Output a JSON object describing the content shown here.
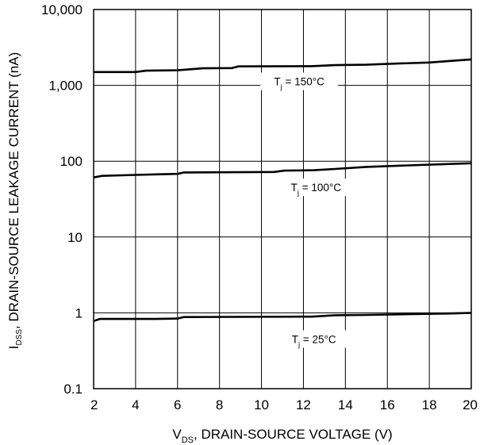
{
  "chart_data": {
    "type": "line",
    "x_axis": {
      "label_main": "V",
      "label_sub": "DS",
      "label_rest": ", DRAIN-SOURCE VOLTAGE (V)",
      "ticks": [
        2,
        4,
        6,
        8,
        10,
        12,
        14,
        16,
        18,
        20
      ],
      "range": [
        2,
        20
      ]
    },
    "y_axis": {
      "label_main": "I",
      "label_sub": "DSS",
      "label_rest": ", DRAIN-SOURCE LEAKAGE CURRENT (nA)",
      "scale": "log",
      "range": [
        0.1,
        10000
      ],
      "ticks": [
        0.1,
        1,
        10,
        100,
        1000,
        10000
      ],
      "tick_labels": [
        "0.1",
        "1",
        "10",
        "100",
        "1,000",
        "10,000"
      ]
    },
    "grid": true,
    "series": [
      {
        "name": "Tj = 150°C",
        "label_main": "T",
        "label_sub": "j",
        "label_rest": " = 150°C",
        "points": [
          [
            2,
            1500
          ],
          [
            4,
            1500
          ],
          [
            4.5,
            1560
          ],
          [
            6,
            1580
          ],
          [
            7.2,
            1680
          ],
          [
            8.6,
            1690
          ],
          [
            8.9,
            1780
          ],
          [
            12.4,
            1790
          ],
          [
            13.5,
            1850
          ],
          [
            15,
            1870
          ],
          [
            16.5,
            1940
          ],
          [
            18,
            2000
          ],
          [
            19,
            2100
          ],
          [
            20,
            2200
          ]
        ]
      },
      {
        "name": "Tj = 100°C",
        "label_main": "T",
        "label_sub": "j",
        "label_rest": " = 100°C",
        "points": [
          [
            2,
            61
          ],
          [
            2.4,
            64
          ],
          [
            4,
            66
          ],
          [
            5,
            67
          ],
          [
            6,
            68
          ],
          [
            6.3,
            71
          ],
          [
            10.6,
            72
          ],
          [
            11.1,
            75
          ],
          [
            12.5,
            76
          ],
          [
            13.5,
            79
          ],
          [
            15,
            84
          ],
          [
            17,
            88
          ],
          [
            19,
            92
          ],
          [
            20,
            94
          ]
        ]
      },
      {
        "name": "Tj = 25°C",
        "label_main": "T",
        "label_sub": "j",
        "label_rest": " = 25°C",
        "points": [
          [
            2,
            0.78
          ],
          [
            2.3,
            0.83
          ],
          [
            5,
            0.83
          ],
          [
            6,
            0.84
          ],
          [
            6.3,
            0.88
          ],
          [
            12.4,
            0.89
          ],
          [
            13.5,
            0.93
          ],
          [
            15,
            0.94
          ],
          [
            17,
            0.96
          ],
          [
            19,
            0.98
          ],
          [
            20,
            1.0
          ]
        ]
      }
    ]
  }
}
